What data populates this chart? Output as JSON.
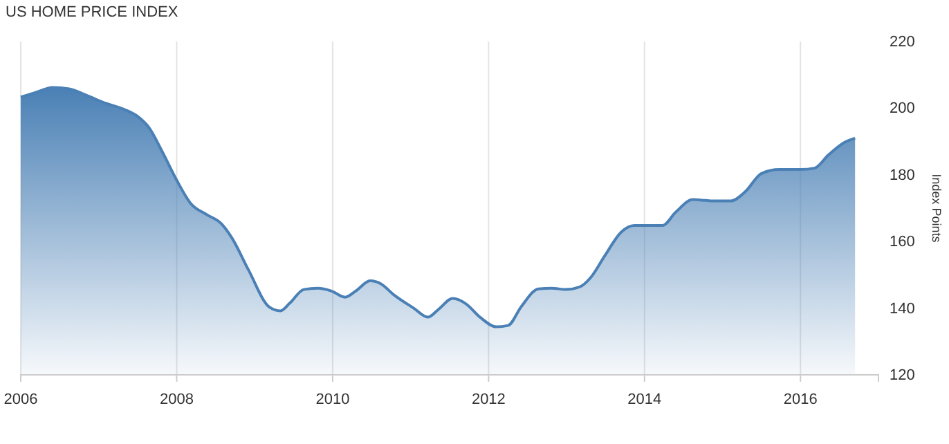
{
  "chart_data": {
    "type": "area",
    "title": "US HOME PRICE INDEX",
    "ylabel": "Index Points",
    "xlim": [
      2006,
      2017
    ],
    "xticks": [
      2006,
      2008,
      2010,
      2012,
      2014,
      2016
    ],
    "ylim": [
      120,
      220
    ],
    "yticks": [
      120,
      140,
      160,
      180,
      200,
      220
    ],
    "grid": "x",
    "series": [
      {
        "color": "#4a80b5",
        "x": [
          2006.0,
          2006.18,
          2006.41,
          2006.62,
          2006.83,
          2007.06,
          2007.33,
          2007.5,
          2007.65,
          2007.82,
          2008.0,
          2008.18,
          2008.39,
          2008.57,
          2008.71,
          2008.92,
          2009.19,
          2009.33,
          2009.45,
          2009.63,
          2009.81,
          2009.98,
          2010.16,
          2010.3,
          2010.48,
          2010.62,
          2010.78,
          2011.04,
          2011.22,
          2011.36,
          2011.54,
          2011.71,
          2011.89,
          2012.1,
          2012.25,
          2012.42,
          2012.64,
          2012.81,
          2012.99,
          2013.17,
          2013.31,
          2013.49,
          2013.7,
          2013.87,
          2014.05,
          2014.23,
          2014.4,
          2014.62,
          2014.85,
          2015.11,
          2015.29,
          2015.5,
          2015.73,
          2016.0,
          2016.18,
          2016.36,
          2016.57,
          2016.7
        ],
        "values": [
          203.3,
          204.6,
          206.2,
          205.8,
          204,
          201.7,
          199.6,
          197.5,
          194,
          186.7,
          178.4,
          171.4,
          168,
          165.4,
          161,
          151.5,
          140.3,
          139.2,
          141.5,
          145.6,
          146,
          145.2,
          143.3,
          145.2,
          148.2,
          147.3,
          144.1,
          140,
          137.3,
          139.7,
          142.9,
          141.3,
          137.3,
          134.4,
          134.8,
          140.5,
          145.8,
          146,
          145.6,
          146.4,
          149.2,
          155.7,
          162.8,
          164.8,
          164.8,
          164.8,
          168.8,
          172.6,
          172.2,
          172.2,
          174.9,
          180.4,
          181.6,
          181.6,
          182,
          186,
          189.8,
          191
        ]
      }
    ]
  }
}
